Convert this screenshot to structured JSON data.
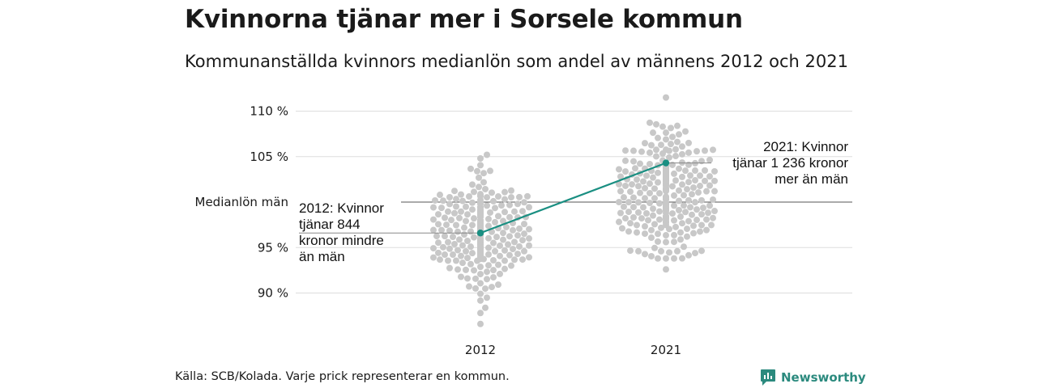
{
  "title": "Kvinnorna tjänar mer i Sorsele kommun",
  "subtitle": "Kommunanställda kvinnors medianlön som andel av männens 2012 och 2021",
  "source": "Källa: SCB/Kolada. Varje prick representerar en kommun.",
  "brand": {
    "label": "Newsworthy",
    "icon": "newsworthy-logo-icon",
    "color": "#2b8a7e"
  },
  "chart_data": {
    "type": "scatter",
    "categories": [
      "2012",
      "2021"
    ],
    "ylim": [
      85,
      112
    ],
    "y_ticks": [
      {
        "value": 90,
        "label": "90 %"
      },
      {
        "value": 95,
        "label": "95 %"
      },
      {
        "value": 105,
        "label": "105 %"
      },
      {
        "value": 110,
        "label": "110 %"
      }
    ],
    "reference_line": {
      "value": 100,
      "label": "Medianlön män"
    },
    "highlight": {
      "color": "#1a8f82",
      "values": [
        96.6,
        104.3
      ],
      "annotations": [
        {
          "category": "2012",
          "lines": [
            "2012: Kvinnor",
            "tjänar 844",
            "kronor mindre",
            "än män"
          ]
        },
        {
          "category": "2021",
          "lines": [
            "2021: Kvinnor",
            "tjänar 1 236 kronor",
            "mer än män"
          ]
        }
      ]
    },
    "distribution": {
      "color": "#c8c8c8",
      "2012": {
        "min": 86.6,
        "max": 105.2,
        "q1": 94.5,
        "median": 96.6,
        "q3": 98.4
      },
      "2021": {
        "min": 92.6,
        "max": 111.5,
        "q1": 99.3,
        "median": 101.2,
        "q3": 103.6
      }
    },
    "grid": true
  }
}
